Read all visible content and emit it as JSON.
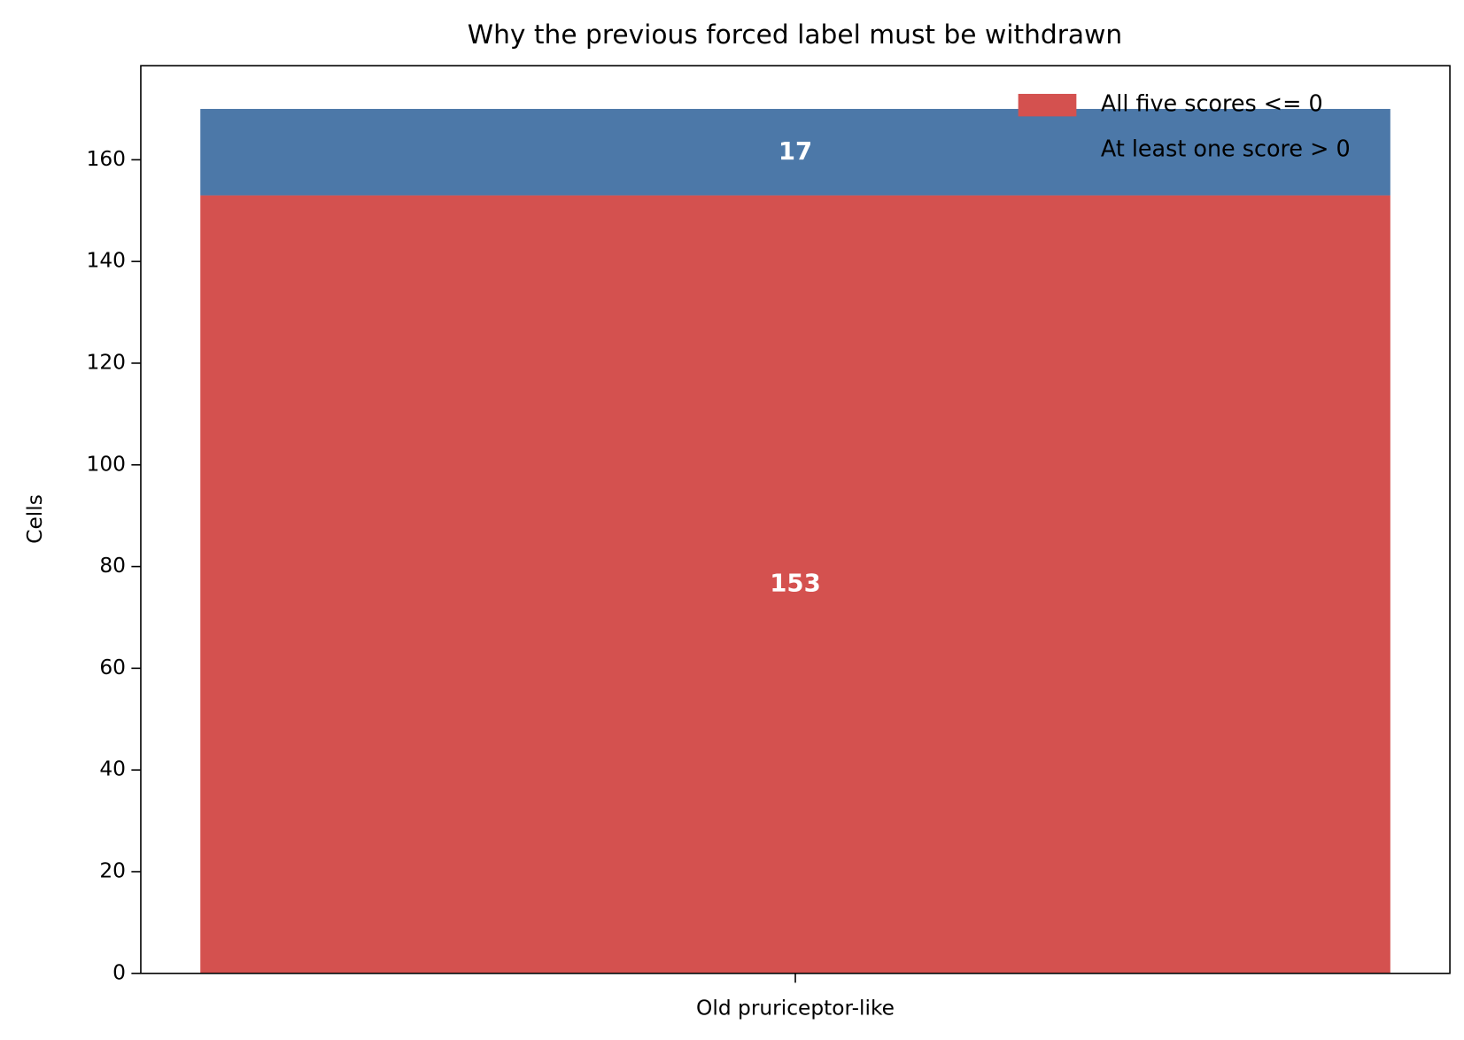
{
  "chart_data": {
    "type": "stacked-bar",
    "title": "Why the previous forced label must be withdrawn",
    "ylabel": "Cells",
    "categories": [
      "Old pruriceptor-like"
    ],
    "series": [
      {
        "name": "All five scores <= 0",
        "color": "#d4514f",
        "values": [
          153
        ]
      },
      {
        "name": "At least one score > 0",
        "color": "#4c78a8",
        "values": [
          17
        ]
      }
    ],
    "ylim": [
      0,
      178.5
    ],
    "yticks": [
      0,
      20,
      40,
      60,
      80,
      100,
      120,
      140,
      160
    ],
    "legend": "upper right",
    "grid": false
  }
}
